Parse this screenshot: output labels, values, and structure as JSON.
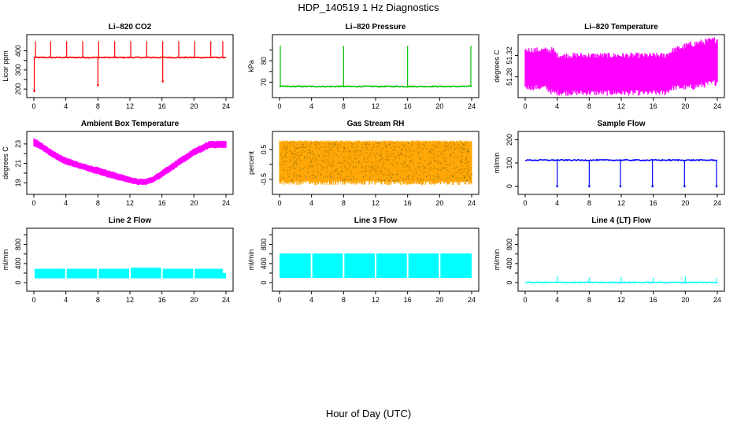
{
  "title": "HDP_140519  1 Hz Diagnostics",
  "x_caption": "Hour of Day (UTC)",
  "chart_data": [
    {
      "type": "line",
      "title": "Li–820 CO2",
      "ylabel": "Licor ppm",
      "color": "#ff0000",
      "style": "spiky",
      "xlim": [
        0,
        24
      ],
      "ylim": [
        180,
        460
      ],
      "xticks": [
        0,
        4,
        8,
        12,
        16,
        20,
        24
      ],
      "yticks": [
        200,
        250,
        300,
        350,
        400
      ],
      "ytick_labels": [
        "200",
        "",
        "300",
        "",
        "400"
      ],
      "baseline": 365,
      "spikes_up": [
        0.2,
        2.1,
        4.1,
        6.1,
        8.1,
        10.1,
        12.1,
        14.1,
        16.1,
        18.1,
        20.1,
        22.1,
        23.6
      ],
      "spike_up_value": 450,
      "spikes_down": [
        [
          0.05,
          190
        ],
        [
          8.0,
          220
        ],
        [
          16.1,
          240
        ]
      ]
    },
    {
      "type": "line",
      "title": "Li–820 Pressure",
      "ylabel": "kPa",
      "color": "#00c000",
      "style": "spiky",
      "xlim": [
        0,
        24
      ],
      "ylim": [
        65,
        90
      ],
      "xticks": [
        0,
        4,
        8,
        12,
        16,
        20,
        24
      ],
      "yticks": [
        70,
        75,
        80,
        85
      ],
      "ytick_labels": [
        "70",
        "",
        "80",
        ""
      ],
      "baseline": 68,
      "spikes_up": [
        0.1,
        8.0,
        16.0,
        23.9
      ],
      "spike_up_value": 87,
      "spikes_down": []
    },
    {
      "type": "line",
      "title": "Li–820 Temperature",
      "ylabel": "degrees C",
      "color": "#ff00ff",
      "style": "band",
      "xlim": [
        0,
        24
      ],
      "ylim": [
        51.25,
        51.35
      ],
      "xticks": [
        0,
        4,
        8,
        12,
        16,
        20,
        24
      ],
      "yticks": [
        51.28,
        51.32
      ],
      "ytick_labels": [
        "51.28",
        "51.32"
      ],
      "band": [
        [
          0.0,
          51.26,
          51.33
        ],
        [
          2.5,
          51.26,
          51.33
        ],
        [
          3.5,
          51.25,
          51.33
        ],
        [
          4.0,
          51.25,
          51.32
        ],
        [
          8.0,
          51.25,
          51.32
        ],
        [
          12.0,
          51.25,
          51.32
        ],
        [
          16.0,
          51.25,
          51.32
        ],
        [
          17.5,
          51.25,
          51.32
        ],
        [
          18.5,
          51.26,
          51.33
        ],
        [
          20.5,
          51.26,
          51.34
        ],
        [
          24.0,
          51.27,
          51.35
        ]
      ]
    },
    {
      "type": "line",
      "title": "Ambient Box Temperature",
      "ylabel": "degrees C",
      "color": "#ff00ff",
      "style": "band",
      "xlim": [
        0,
        24
      ],
      "ylim": [
        18.3,
        23.8
      ],
      "xticks": [
        0,
        4,
        8,
        12,
        16,
        20,
        24
      ],
      "yticks": [
        19,
        20,
        21,
        22,
        23
      ],
      "ytick_labels": [
        "19",
        "",
        "21",
        "",
        "23"
      ],
      "band": [
        [
          0,
          22.8,
          23.6
        ],
        [
          1,
          22.4,
          23.1
        ],
        [
          2,
          21.8,
          22.5
        ],
        [
          3,
          21.3,
          22.0
        ],
        [
          4,
          20.9,
          21.6
        ],
        [
          6,
          20.4,
          21.0
        ],
        [
          8,
          19.9,
          20.6
        ],
        [
          10,
          19.4,
          20.1
        ],
        [
          12,
          19.0,
          19.6
        ],
        [
          13,
          18.8,
          19.4
        ],
        [
          14,
          18.8,
          19.4
        ],
        [
          15,
          19.1,
          19.7
        ],
        [
          16,
          19.6,
          20.3
        ],
        [
          18,
          20.7,
          21.4
        ],
        [
          20,
          21.8,
          22.5
        ],
        [
          22,
          22.6,
          23.3
        ],
        [
          24,
          22.6,
          23.3
        ]
      ]
    },
    {
      "type": "line",
      "title": "Gas Stream RH",
      "ylabel": "percent",
      "color": "#ffa500",
      "style": "noise",
      "xlim": [
        0,
        24
      ],
      "ylim": [
        -0.85,
        0.95
      ],
      "xticks": [
        0,
        4,
        8,
        12,
        16,
        20,
        24
      ],
      "yticks": [
        -0.5,
        0,
        0.5
      ],
      "ytick_labels": [
        "-0.5",
        "",
        "0.5"
      ],
      "band": [
        [
          0,
          -0.55,
          0.75
        ],
        [
          24,
          -0.55,
          0.75
        ]
      ],
      "noise_max": 0.8,
      "noise_min": -0.75
    },
    {
      "type": "line",
      "title": "Sample Flow",
      "ylabel": "ml/min",
      "color": "#0000ff",
      "style": "spiky",
      "xlim": [
        0,
        24
      ],
      "ylim": [
        -15,
        215
      ],
      "xticks": [
        0,
        4,
        8,
        12,
        16,
        20,
        24
      ],
      "yticks": [
        0,
        100,
        200
      ],
      "ytick_labels": [
        "0",
        "100",
        "200"
      ],
      "baseline": 112,
      "spikes_up": [],
      "spike_up_value": 112,
      "spikes_down": [
        [
          4.0,
          0
        ],
        [
          8.0,
          0
        ],
        [
          11.9,
          0
        ],
        [
          15.9,
          0
        ],
        [
          19.9,
          0
        ],
        [
          23.9,
          0
        ]
      ]
    },
    {
      "type": "line",
      "title": "Line 2 Flow",
      "ylabel": "ml/min",
      "color": "#00ffff",
      "style": "blocks",
      "xlim": [
        0,
        24
      ],
      "ylim": [
        -80,
        1040
      ],
      "xticks": [
        0,
        4,
        8,
        12,
        16,
        20,
        24
      ],
      "yticks": [
        0,
        200,
        400,
        600,
        800,
        1000
      ],
      "ytick_labels": [
        "0",
        "",
        "400",
        "",
        "800",
        ""
      ],
      "blocks": [
        [
          0.1,
          3.9,
          90,
          290
        ],
        [
          4.1,
          7.9,
          90,
          290
        ],
        [
          8.1,
          11.9,
          90,
          290
        ],
        [
          12.1,
          15.9,
          90,
          315
        ],
        [
          16.1,
          19.9,
          90,
          290
        ],
        [
          20.1,
          23.6,
          90,
          290
        ],
        [
          23.6,
          24.0,
          90,
          200
        ]
      ]
    },
    {
      "type": "line",
      "title": "Line 3 Flow",
      "ylabel": "ml/min",
      "color": "#00ffff",
      "style": "blocks",
      "xlim": [
        0,
        24
      ],
      "ylim": [
        -80,
        1040
      ],
      "xticks": [
        0,
        4,
        8,
        12,
        16,
        20,
        24
      ],
      "yticks": [
        0,
        200,
        400,
        600,
        800,
        1000
      ],
      "ytick_labels": [
        "0",
        "",
        "400",
        "",
        "800",
        ""
      ],
      "blocks": [
        [
          0.0,
          3.9,
          100,
          610
        ],
        [
          4.1,
          7.9,
          100,
          610
        ],
        [
          8.1,
          11.9,
          100,
          610
        ],
        [
          12.1,
          15.9,
          100,
          610
        ],
        [
          16.1,
          19.9,
          100,
          610
        ],
        [
          20.1,
          24.0,
          100,
          610
        ]
      ]
    },
    {
      "type": "line",
      "title": "Line 4 (LT) Flow",
      "ylabel": "ml/min",
      "color": "#00ffff",
      "style": "spiky",
      "xlim": [
        0,
        24
      ],
      "ylim": [
        -80,
        1040
      ],
      "xticks": [
        0,
        4,
        8,
        12,
        16,
        20,
        24
      ],
      "yticks": [
        0,
        200,
        400,
        600,
        800,
        1000
      ],
      "ytick_labels": [
        "0",
        "",
        "400",
        "",
        "800",
        ""
      ],
      "baseline": 5,
      "spikes_up": [
        [
          4.0,
          130
        ],
        [
          8.0,
          110
        ],
        [
          12.0,
          120
        ],
        [
          16.0,
          100
        ],
        [
          20.0,
          130
        ],
        [
          23.9,
          95
        ]
      ],
      "spike_up_value": 120,
      "spikes_down": []
    }
  ]
}
